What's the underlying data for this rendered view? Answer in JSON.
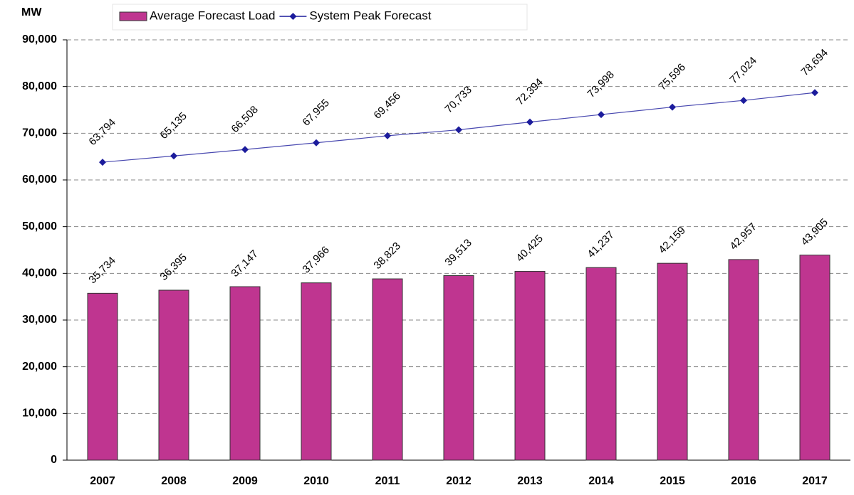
{
  "chart_data": {
    "type": "bar",
    "y_label": "MW",
    "categories": [
      "2007",
      "2008",
      "2009",
      "2010",
      "2011",
      "2012",
      "2013",
      "2014",
      "2015",
      "2016",
      "2017"
    ],
    "series": [
      {
        "name": "Average Forecast Load",
        "type": "bar",
        "color": "#bf3590",
        "values": [
          35734,
          36395,
          37147,
          37966,
          38823,
          39513,
          40425,
          41237,
          42159,
          42957,
          43905
        ],
        "value_labels": [
          "35,734",
          "36,395",
          "37,147",
          "37,966",
          "38,823",
          "39,513",
          "40,425",
          "41,237",
          "42,159",
          "42,957",
          "43,905"
        ]
      },
      {
        "name": "System Peak Forecast",
        "type": "line",
        "color": "#1c1c9c",
        "values": [
          63794,
          65135,
          66508,
          67955,
          69456,
          70733,
          72394,
          73998,
          75596,
          77024,
          78694
        ],
        "value_labels": [
          "63,794",
          "65,135",
          "66,508",
          "67,955",
          "69,456",
          "70,733",
          "72,394",
          "73,998",
          "75,596",
          "77,024",
          "78,694"
        ]
      }
    ],
    "ylim": [
      0,
      90000
    ],
    "yticks": [
      0,
      {
        "value": 10000,
        "label": "10,000"
      },
      {
        "value": 20000,
        "label": "20,000"
      },
      {
        "value": 30000,
        "label": "30,000"
      },
      {
        "value": 40000,
        "label": "40,000"
      },
      {
        "value": 50000,
        "label": "50,000"
      },
      {
        "value": 60000,
        "label": "60,000"
      },
      {
        "value": 70000,
        "label": "70,000"
      },
      {
        "value": 80000,
        "label": "80,000"
      },
      {
        "value": 90000,
        "label": "90,000"
      }
    ],
    "grid": true
  }
}
